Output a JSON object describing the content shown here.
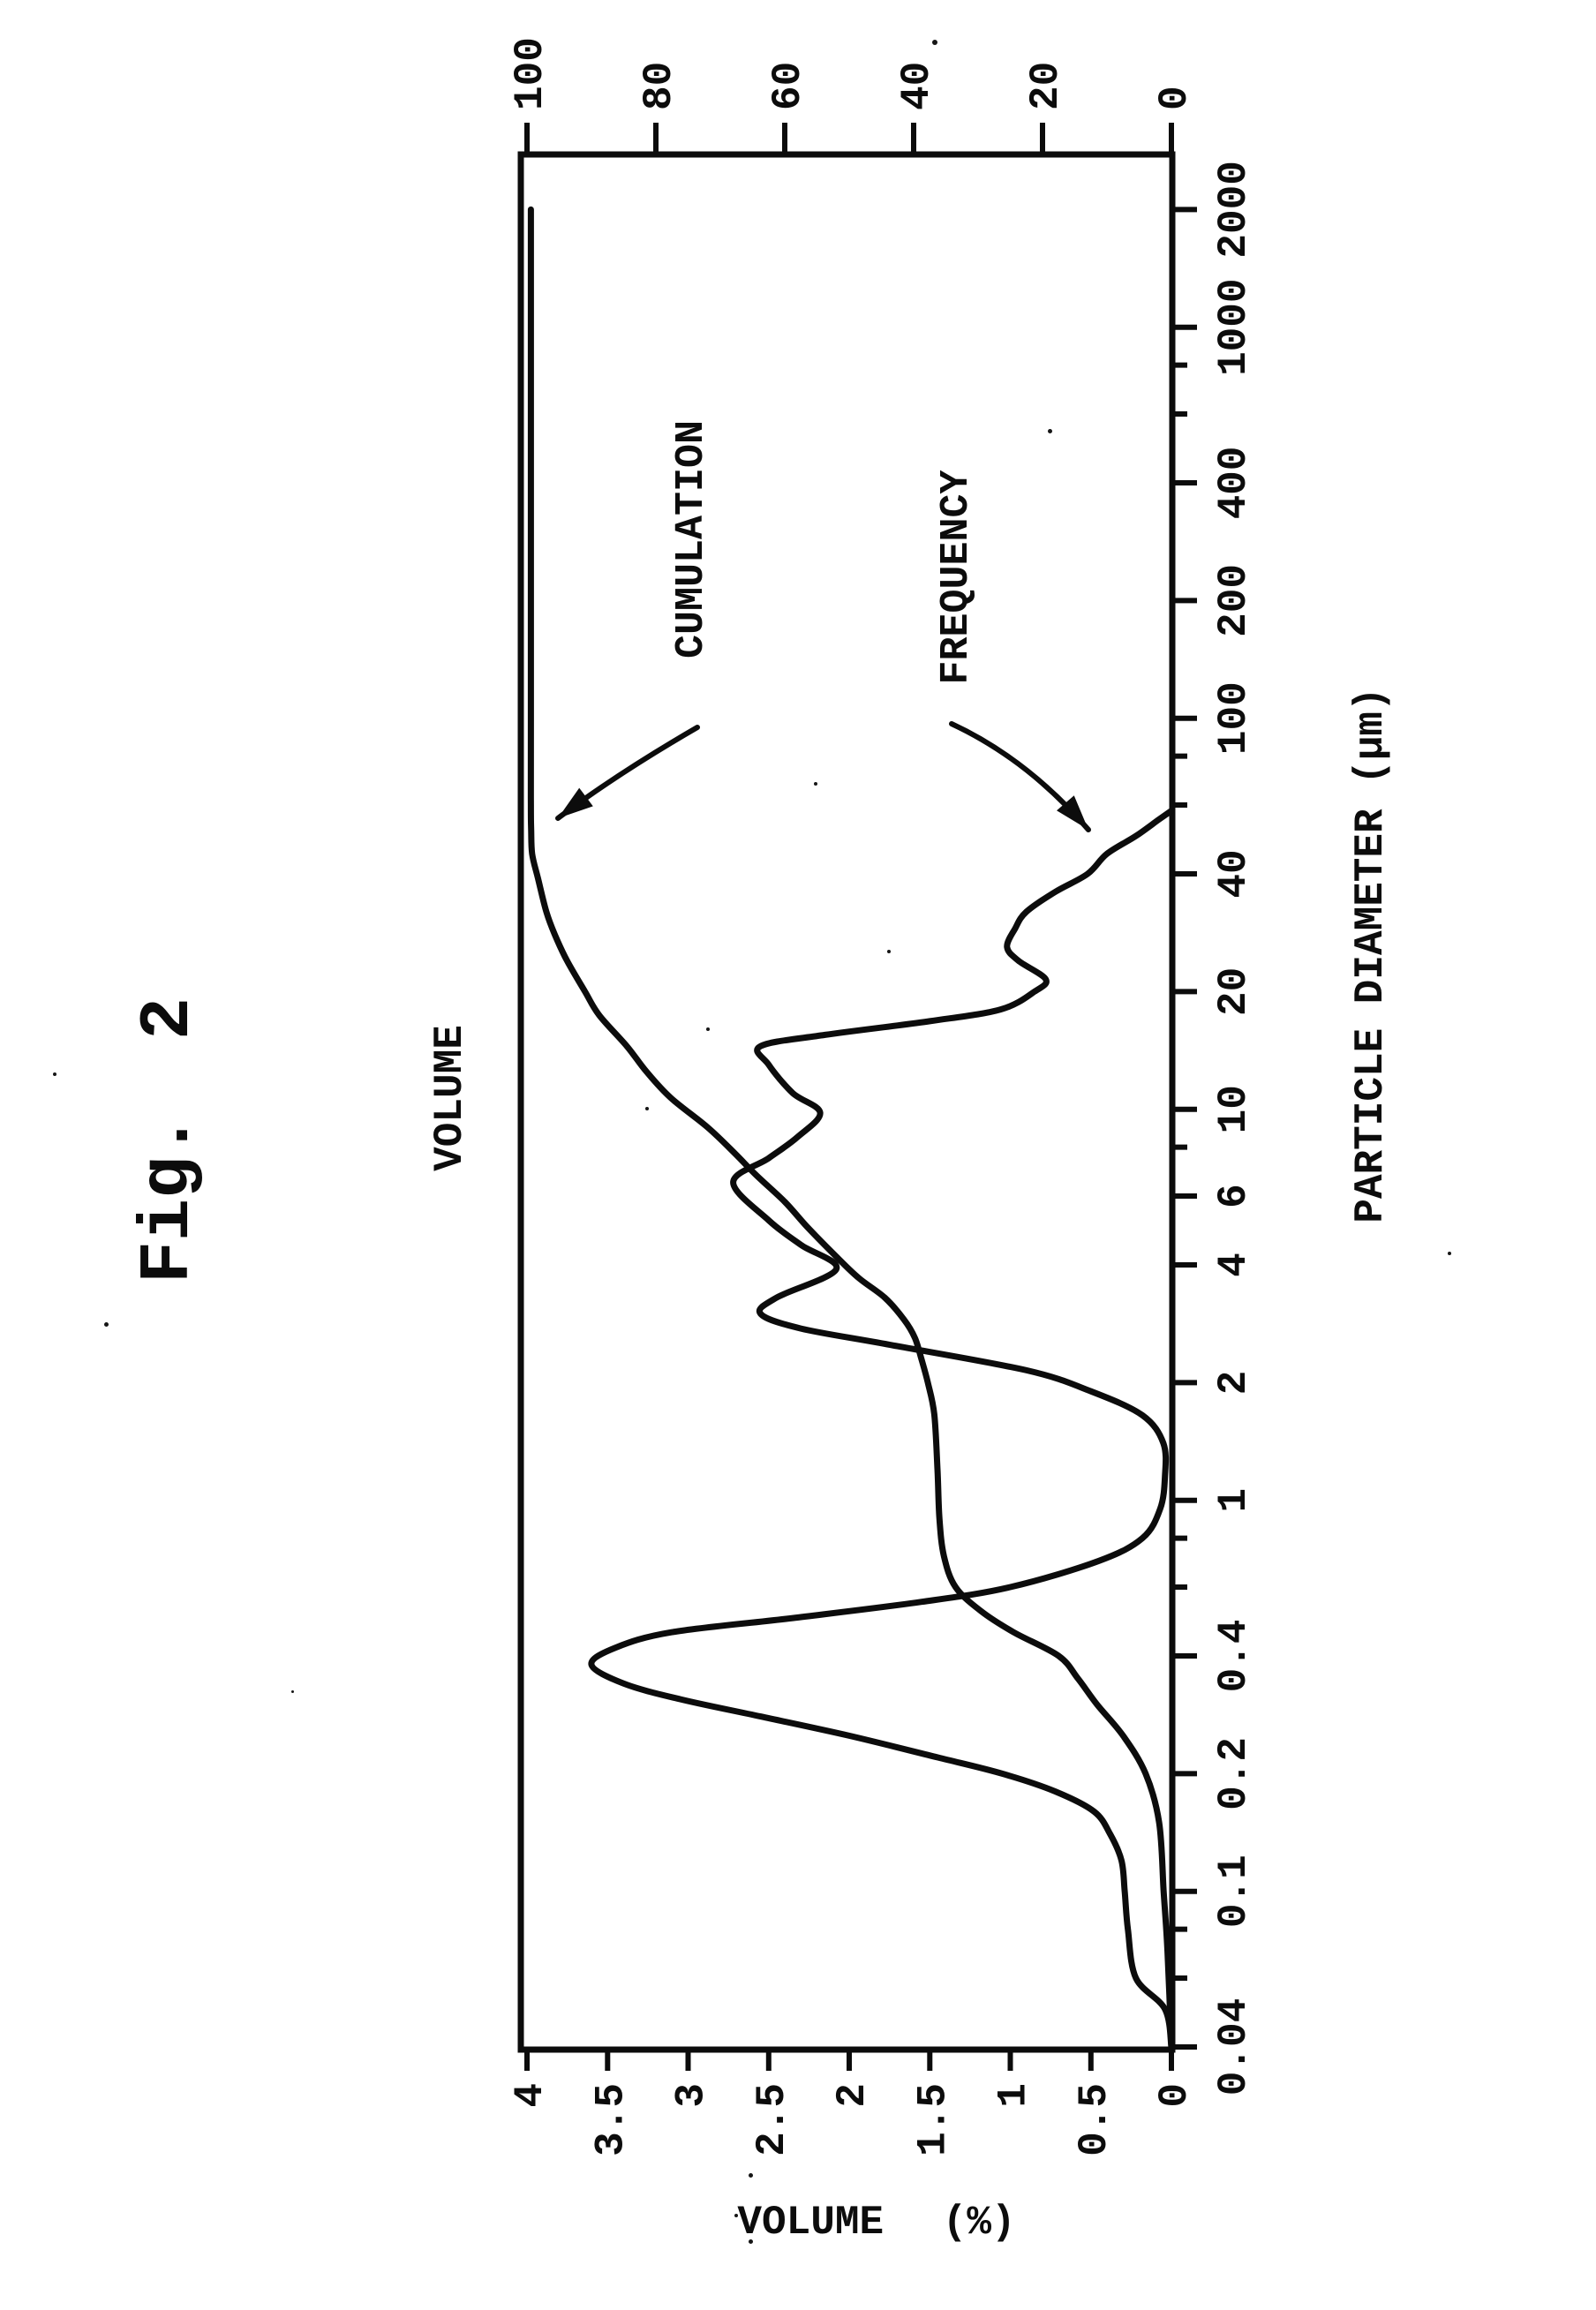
{
  "figure_title": "Fig. 2",
  "chart_data": {
    "type": "line",
    "title": "VOLUME",
    "xlabel": "PARTICLE DIAMETER (μm)",
    "ylabel_left": "VOLUME (%)",
    "x_scale": "log",
    "xlim": [
      0.04,
      2000
    ],
    "ylim_left": [
      0,
      4
    ],
    "ylim_right": [
      0,
      100
    ],
    "grid": false,
    "x_major_ticks": [
      {
        "v": 0.04,
        "label": "0.04"
      },
      {
        "v": 0.1,
        "label": "0.1"
      },
      {
        "v": 0.2,
        "label": "0.2"
      },
      {
        "v": 0.4,
        "label": "0.4"
      },
      {
        "v": 1,
        "label": "1"
      },
      {
        "v": 2,
        "label": "2"
      },
      {
        "v": 4,
        "label": "4"
      },
      {
        "v": 6,
        "label": "6"
      },
      {
        "v": 10,
        "label": "10"
      },
      {
        "v": 20,
        "label": "20"
      },
      {
        "v": 40,
        "label": "40"
      },
      {
        "v": 100,
        "label": "100"
      },
      {
        "v": 200,
        "label": "200"
      },
      {
        "v": 400,
        "label": "400"
      },
      {
        "v": 1000,
        "label": "1000"
      },
      {
        "v": 2000,
        "label": "2000"
      }
    ],
    "x_minor_ticks": [
      0.06,
      0.08,
      0.6,
      0.8,
      8,
      60,
      80,
      600,
      800
    ],
    "y_left_ticks": [
      {
        "v": 4,
        "label": "4"
      },
      {
        "v": 3.5,
        "label": "3.5"
      },
      {
        "v": 3,
        "label": "3"
      },
      {
        "v": 2.5,
        "label": "2.5"
      },
      {
        "v": 2,
        "label": "2"
      },
      {
        "v": 1.5,
        "label": "1.5"
      },
      {
        "v": 1,
        "label": "1"
      },
      {
        "v": 0.5,
        "label": "0.5"
      },
      {
        "v": 0,
        "label": "0"
      }
    ],
    "y_right_ticks": [
      {
        "v": 100,
        "label": "100"
      },
      {
        "v": 80,
        "label": "80"
      },
      {
        "v": 60,
        "label": "60"
      },
      {
        "v": 40,
        "label": "40"
      },
      {
        "v": 20,
        "label": "20"
      },
      {
        "v": 0,
        "label": "0"
      }
    ],
    "series": [
      {
        "name": "CUMULATION",
        "axis": "right",
        "points": [
          [
            0.04,
            0
          ],
          [
            0.07,
            0.6
          ],
          [
            0.1,
            1.2
          ],
          [
            0.15,
            1.9
          ],
          [
            0.2,
            4
          ],
          [
            0.25,
            7.5
          ],
          [
            0.3,
            11.5
          ],
          [
            0.35,
            14.5
          ],
          [
            0.4,
            17.5
          ],
          [
            0.46,
            24.5
          ],
          [
            0.52,
            29.5
          ],
          [
            0.6,
            33.5
          ],
          [
            0.72,
            35.3
          ],
          [
            0.9,
            36
          ],
          [
            1.2,
            36.3
          ],
          [
            1.66,
            36.8
          ],
          [
            2.0,
            37.8
          ],
          [
            2.3,
            38.8
          ],
          [
            2.6,
            39.8
          ],
          [
            2.9,
            41.5
          ],
          [
            3.3,
            44.5
          ],
          [
            3.7,
            48.5
          ],
          [
            4.2,
            52
          ],
          [
            5.0,
            56.5
          ],
          [
            5.8,
            60
          ],
          [
            6.8,
            64.5
          ],
          [
            7.7,
            67.7
          ],
          [
            9.0,
            72
          ],
          [
            10.7,
            77.7
          ],
          [
            12.5,
            81.5
          ],
          [
            14.5,
            84.5
          ],
          [
            17.4,
            88.8
          ],
          [
            20,
            91
          ],
          [
            24,
            93.8
          ],
          [
            28,
            95.7
          ],
          [
            32,
            97
          ],
          [
            39,
            98.3
          ],
          [
            45,
            99.2
          ],
          [
            52,
            99.35
          ],
          [
            60,
            99.4
          ],
          [
            100,
            99.4
          ],
          [
            2000,
            99.4
          ]
        ]
      },
      {
        "name": "FREQUENCY",
        "axis": "left",
        "points": [
          [
            0.04,
            0
          ],
          [
            0.05,
            0.04
          ],
          [
            0.06,
            0.22
          ],
          [
            0.08,
            0.27
          ],
          [
            0.1,
            0.29
          ],
          [
            0.12,
            0.31
          ],
          [
            0.14,
            0.38
          ],
          [
            0.16,
            0.48
          ],
          [
            0.18,
            0.72
          ],
          [
            0.2,
            1.05
          ],
          [
            0.22,
            1.45
          ],
          [
            0.25,
            2.0
          ],
          [
            0.28,
            2.55
          ],
          [
            0.31,
            3.05
          ],
          [
            0.34,
            3.4
          ],
          [
            0.38,
            3.6
          ],
          [
            0.42,
            3.45
          ],
          [
            0.46,
            3.1
          ],
          [
            0.5,
            2.35
          ],
          [
            0.55,
            1.55
          ],
          [
            0.6,
            1.0
          ],
          [
            0.7,
            0.45
          ],
          [
            0.8,
            0.18
          ],
          [
            0.95,
            0.07
          ],
          [
            1.15,
            0.04
          ],
          [
            1.4,
            0.05
          ],
          [
            1.65,
            0.18
          ],
          [
            1.9,
            0.5
          ],
          [
            2.15,
            0.9
          ],
          [
            2.5,
            1.75
          ],
          [
            2.75,
            2.3
          ],
          [
            3.0,
            2.55
          ],
          [
            3.3,
            2.45
          ],
          [
            3.9,
            2.08
          ],
          [
            4.5,
            2.3
          ],
          [
            5.2,
            2.5
          ],
          [
            6.5,
            2.72
          ],
          [
            7.5,
            2.5
          ],
          [
            8.5,
            2.32
          ],
          [
            9.8,
            2.18
          ],
          [
            11,
            2.35
          ],
          [
            13,
            2.5
          ],
          [
            14.5,
            2.55
          ],
          [
            15.5,
            2.15
          ],
          [
            16.8,
            1.5
          ],
          [
            18,
            1.06
          ],
          [
            20,
            0.85
          ],
          [
            21.5,
            0.78
          ],
          [
            24,
            0.95
          ],
          [
            26,
            1.02
          ],
          [
            29,
            0.97
          ],
          [
            32,
            0.9
          ],
          [
            36,
            0.72
          ],
          [
            40,
            0.52
          ],
          [
            45,
            0.4
          ],
          [
            50,
            0.22
          ],
          [
            55,
            0.08
          ],
          [
            58,
            0
          ]
        ]
      }
    ]
  }
}
